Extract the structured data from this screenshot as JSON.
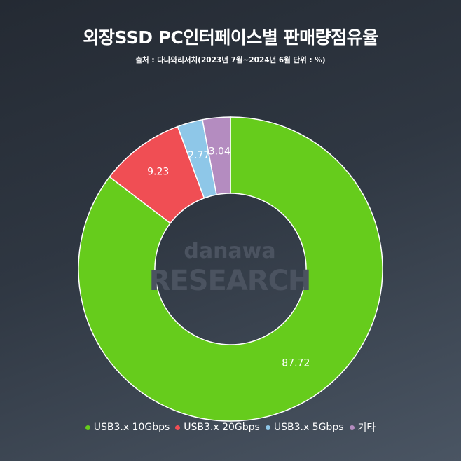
{
  "title": "외장SSD PC인터페이스별 판매량점유율",
  "subtitle": "출처 : 다나와리서치(2023년 7월~2024년 6월 단위 : %)",
  "watermark": {
    "line1": "danawa",
    "line2": "RESEARCH"
  },
  "chart_data": {
    "type": "pie",
    "donut": true,
    "unit": "%",
    "categories": [
      "USB3.x 10Gbps",
      "USB3.x 20Gbps",
      "USB3.x 5Gbps",
      "기타"
    ],
    "values": [
      87.72,
      9.23,
      2.77,
      3.04
    ],
    "value_labels": [
      "87.72",
      "9.23",
      "2.77",
      "3.04"
    ],
    "colors": [
      "#66cc1c",
      "#f04e54",
      "#8ec7e8",
      "#b48cc0"
    ],
    "legend_position": "bottom"
  }
}
